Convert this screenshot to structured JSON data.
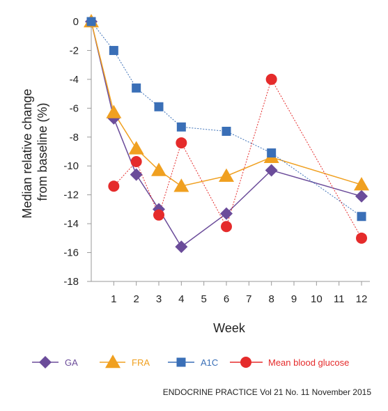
{
  "chart_data": {
    "type": "line",
    "xlabel": "Week",
    "ylabel": "Median relative change from baseline (%)",
    "ylabel_lines": [
      "Median relative change",
      "from baseline (%)"
    ],
    "x_ticks": [
      "1",
      "2",
      "3",
      "4",
      "5",
      "6",
      "7",
      "8",
      "9",
      "10",
      "11",
      "12"
    ],
    "y_ticks": [
      "0",
      "-2",
      "-4",
      "-6",
      "-8",
      "-10",
      "-12",
      "-14",
      "-16",
      "-18"
    ],
    "ylim": [
      -18,
      0
    ],
    "xlim": [
      0,
      12
    ],
    "grid": false,
    "legend_position": "bottom",
    "series": [
      {
        "name": "GA",
        "color": "#6b4c9a",
        "marker": "diamond",
        "line": "solid",
        "x": [
          0,
          1,
          2,
          3,
          4,
          6,
          8,
          12
        ],
        "y": [
          0,
          -6.7,
          -10.6,
          -13.0,
          -15.6,
          -13.3,
          -10.3,
          -12.1
        ]
      },
      {
        "name": "FRA",
        "color": "#f0a020",
        "marker": "triangle",
        "line": "solid",
        "x": [
          0,
          1,
          2,
          3,
          4,
          6,
          8,
          12
        ],
        "y": [
          0,
          -6.3,
          -8.8,
          -10.3,
          -11.4,
          -10.7,
          -9.4,
          -11.3
        ]
      },
      {
        "name": "A1C",
        "color": "#3a6fb7",
        "marker": "square",
        "line": "dotted",
        "x": [
          0,
          1,
          2,
          3,
          4,
          6,
          8,
          12
        ],
        "y": [
          0,
          -2.0,
          -4.6,
          -5.9,
          -7.3,
          -7.6,
          -9.1,
          -13.5
        ]
      },
      {
        "name": "Mean blood glucose",
        "color": "#e52b2b",
        "marker": "circle",
        "line": "dotted",
        "x": [
          1,
          2,
          3,
          4,
          6,
          8,
          12
        ],
        "y": [
          -11.4,
          -9.7,
          -13.4,
          -8.4,
          -14.2,
          -4.0,
          -15.0
        ]
      }
    ]
  },
  "source": "ENDOCRINE PRACTICE Vol 21 No. 11 November 2015"
}
